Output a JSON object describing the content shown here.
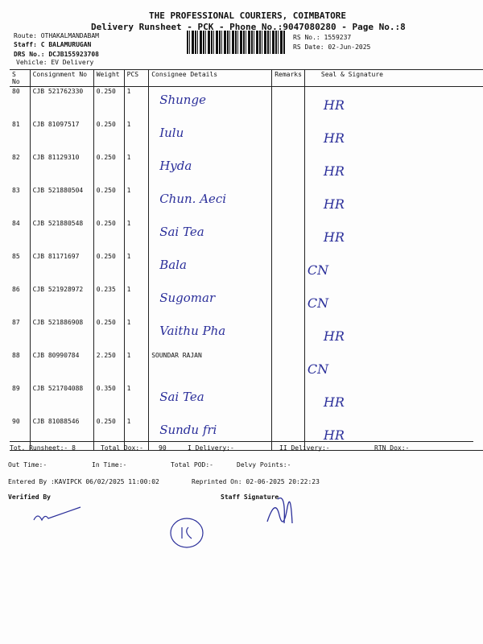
{
  "header": {
    "company": "THE PROFESSIONAL COURIERS, COIMBATORE",
    "subtitle": "Delivery Runsheet - PCK - Phone No.:9047080280 - Page No.:8",
    "route": "Route: OTHAKALMANDABAM",
    "staff": "Staff: C BALAMURUGAN",
    "drs": "DRS No.: DCJB155923708",
    "vehicle": "Vehicle: EV Delivery",
    "rs_no": "RS No.: 1559237",
    "rs_date": "RS Date: 02-Jun-2025"
  },
  "table": {
    "columns": [
      "S No",
      "Consignment No",
      "Weight",
      "PCS",
      "Consignee Details",
      "Remarks",
      "Seal & Signature"
    ],
    "rows": [
      {
        "sno": "80",
        "cn": "CJB 521762330",
        "wt": "0.250",
        "pcs": "1",
        "consignee": "",
        "hand": "Shunge",
        "sig": "HR"
      },
      {
        "sno": "81",
        "cn": "CJB 81097517",
        "wt": "0.250",
        "pcs": "1",
        "consignee": "",
        "hand": "Iulu",
        "sig": "HR"
      },
      {
        "sno": "82",
        "cn": "CJB 81129310",
        "wt": "0.250",
        "pcs": "1",
        "consignee": "",
        "hand": "Hyda",
        "sig": "HR"
      },
      {
        "sno": "83",
        "cn": "CJB 521880504",
        "wt": "0.250",
        "pcs": "1",
        "consignee": "",
        "hand": "Chun. Aeci",
        "sig": "HR"
      },
      {
        "sno": "84",
        "cn": "CJB 521880548",
        "wt": "0.250",
        "pcs": "1",
        "consignee": "",
        "hand": "Sai Tea",
        "sig": "HR"
      },
      {
        "sno": "85",
        "cn": "CJB 81171697",
        "wt": "0.250",
        "pcs": "1",
        "consignee": "",
        "hand": "Bala",
        "sig": "CN"
      },
      {
        "sno": "86",
        "cn": "CJB 521928972",
        "wt": "0.235",
        "pcs": "1",
        "consignee": "",
        "hand": "Sugomar",
        "sig": "CN"
      },
      {
        "sno": "87",
        "cn": "CJB 521886908",
        "wt": "0.250",
        "pcs": "1",
        "consignee": "",
        "hand": "Vaithu Pha",
        "sig": "HR"
      },
      {
        "sno": "88",
        "cn": "CJB 80990784",
        "wt": "2.250",
        "pcs": "1",
        "consignee": "SOUNDAR RAJAN",
        "hand": "",
        "sig": "CN"
      },
      {
        "sno": "89",
        "cn": "CJB 521704088",
        "wt": "0.350",
        "pcs": "1",
        "consignee": "",
        "hand": "Sai Tea",
        "sig": "HR"
      },
      {
        "sno": "90",
        "cn": "CJB 81088546",
        "wt": "0.250",
        "pcs": "1",
        "consignee": "",
        "hand": "Sundu fri",
        "sig": "HR"
      }
    ]
  },
  "footer": {
    "tot_runsheet": "Tot. Runsheet:- 8",
    "total_dox": "Total Dox:-",
    "total_dox_val": "90",
    "i_delivery": "I Delivery:-",
    "ii_delivery": "II Delivery:-",
    "rtn_dox": "RTN Dox:-",
    "out_time": "Out Time:-",
    "in_time": "In Time:-",
    "total_pod": "Total POD:-",
    "delvy_points": "Delvy Points:-",
    "entered_by": "Entered By :KAVIPCK 06/02/2025 11:00:02",
    "reprinted": "Reprinted On: 02-06-2025 20:22:23",
    "verified_by": "Verified By",
    "staff_signature": "Staff Signature"
  },
  "colors": {
    "ink": "#2b2f9a",
    "print": "#111111"
  }
}
